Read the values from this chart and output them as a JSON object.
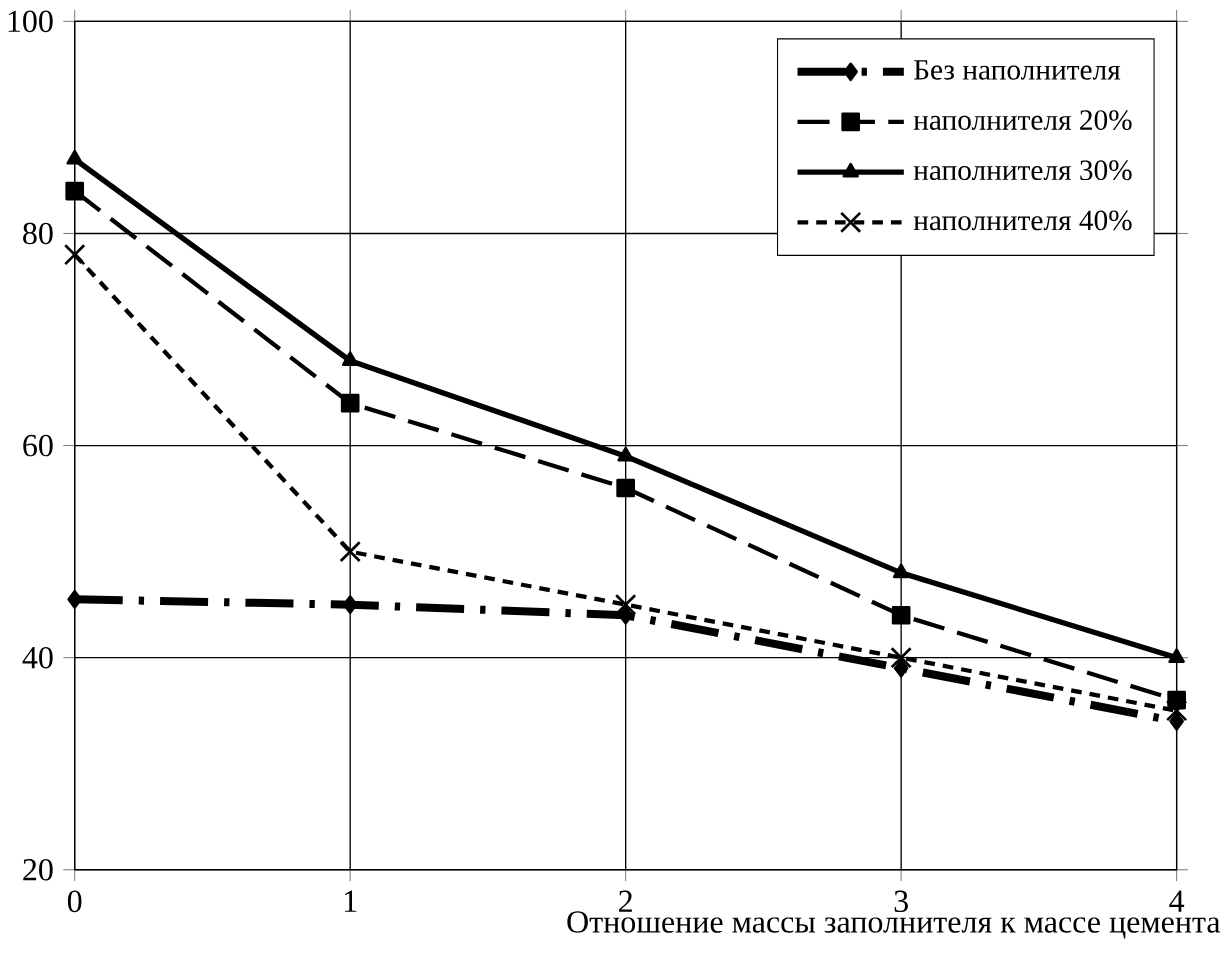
{
  "chart_data": {
    "type": "line",
    "xlabel": "Отношение массы заполнителя к массе цемента",
    "x": [
      0,
      1,
      2,
      3,
      4
    ],
    "xlim": [
      0,
      4
    ],
    "xticks": [
      0,
      1,
      2,
      3,
      4
    ],
    "ylim": [
      20,
      100
    ],
    "yticks": [
      20,
      40,
      60,
      80,
      100
    ],
    "grid": true,
    "legend": "top right",
    "series": [
      {
        "name": "Без наполнителя",
        "color": "#000000",
        "values": [
          45.5,
          45,
          44,
          39,
          34
        ],
        "marker": "diamond",
        "line_style": "dashdot"
      },
      {
        "name": "наполнителя 20%",
        "color": "#000000",
        "values": [
          84,
          64,
          56,
          44,
          36
        ],
        "marker": "square",
        "line_style": "dashed"
      },
      {
        "name": "наполнителя 30%",
        "color": "#000000",
        "values": [
          87,
          68,
          59,
          48,
          40
        ],
        "marker": "triangle",
        "line_style": "solid"
      },
      {
        "name": "наполнителя 40%",
        "color": "#000000",
        "values": [
          78,
          50,
          45,
          40,
          35
        ],
        "marker": "cross",
        "line_style": "dotted"
      }
    ]
  }
}
